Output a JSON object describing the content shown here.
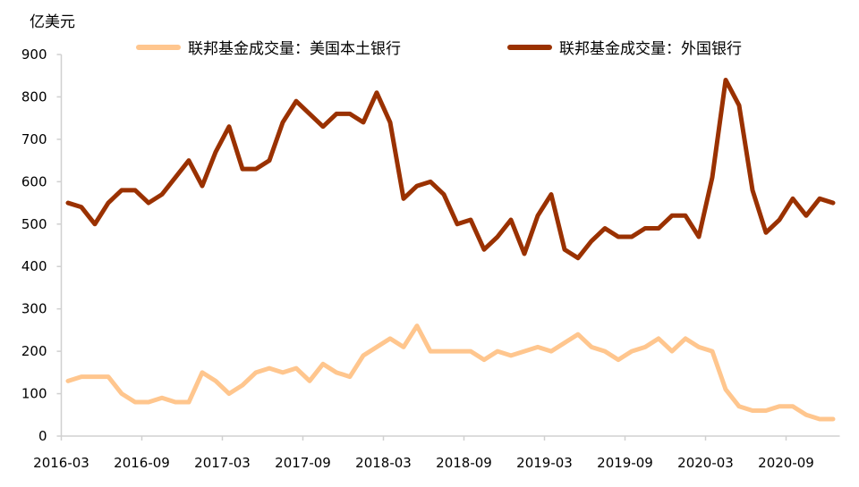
{
  "chart_data": {
    "type": "line",
    "title": "",
    "ylabel": "亿美元",
    "xlabel": "",
    "ylim": [
      0,
      900
    ],
    "yticks": [
      "0",
      "100",
      "200",
      "300",
      "400",
      "500",
      "600",
      "700",
      "800",
      "900"
    ],
    "xtick_labels": [
      "2016-03",
      "2016-09",
      "2017-03",
      "2017-09",
      "2018-03",
      "2018-09",
      "2019-03",
      "2019-09",
      "2020-03",
      "2020-09"
    ],
    "x_start": "2016-03",
    "legend_position": "top",
    "grid": false,
    "series": [
      {
        "name": "联邦基金成交量：美国本土银行",
        "color": "#FFC68E",
        "values": [
          130,
          140,
          140,
          140,
          100,
          80,
          80,
          90,
          80,
          80,
          150,
          130,
          100,
          120,
          150,
          160,
          150,
          160,
          130,
          170,
          150,
          140,
          190,
          210,
          230,
          210,
          260,
          200,
          200,
          200,
          200,
          180,
          200,
          190,
          200,
          210,
          200,
          220,
          240,
          210,
          200,
          180,
          200,
          210,
          230,
          200,
          230,
          210,
          200,
          110,
          70,
          60,
          60,
          70,
          70,
          50,
          40,
          40
        ]
      },
      {
        "name": "联邦基金成交量：外国银行",
        "color": "#9A3100",
        "values": [
          550,
          540,
          500,
          550,
          580,
          580,
          550,
          570,
          610,
          650,
          590,
          670,
          730,
          630,
          630,
          650,
          740,
          790,
          760,
          730,
          760,
          760,
          740,
          810,
          740,
          560,
          590,
          600,
          570,
          500,
          510,
          440,
          470,
          510,
          430,
          520,
          570,
          440,
          420,
          460,
          490,
          470,
          470,
          490,
          490,
          520,
          520,
          470,
          610,
          840,
          780,
          580,
          480,
          510,
          560,
          520,
          560,
          550
        ]
      }
    ]
  }
}
